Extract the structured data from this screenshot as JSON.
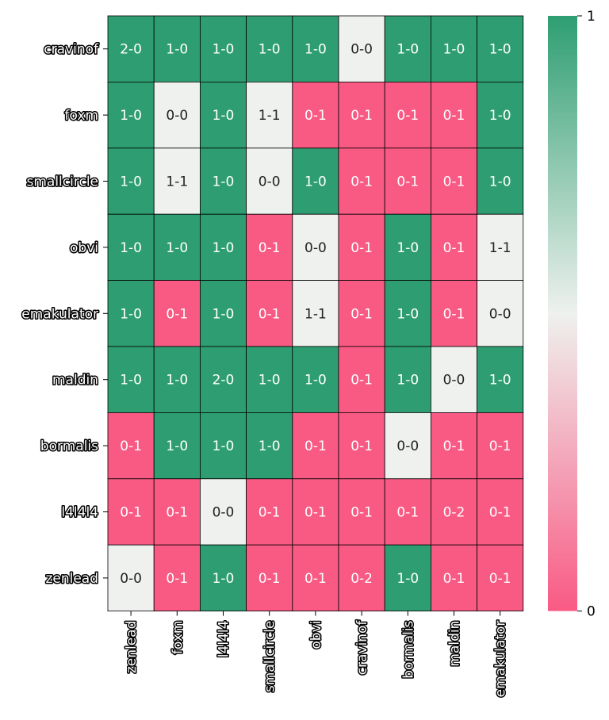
{
  "colors": {
    "high": "#2e9e72",
    "mid": "#eef1ee",
    "low": "#f95a84",
    "grid_line": "#000000",
    "text_on_dark": "#ffffff",
    "text_on_light": "#222222"
  },
  "chart_data": {
    "type": "heatmap",
    "row_labels": [
      "cravinof",
      "foxm",
      "smallcircle",
      "obvi",
      "emakulator",
      "maldin",
      "bormalis",
      "l4l4l4",
      "zenlead"
    ],
    "col_labels": [
      "zenlead",
      "foxm",
      "l4l4l4",
      "smallcircle",
      "obvi",
      "cravinof",
      "bormalis",
      "maldin",
      "emakulator"
    ],
    "cell_text": [
      [
        "2-0",
        "1-0",
        "1-0",
        "1-0",
        "1-0",
        "0-0",
        "1-0",
        "1-0",
        "1-0"
      ],
      [
        "1-0",
        "0-0",
        "1-0",
        "1-1",
        "0-1",
        "0-1",
        "0-1",
        "0-1",
        "1-0"
      ],
      [
        "1-0",
        "1-1",
        "1-0",
        "0-0",
        "1-0",
        "0-1",
        "0-1",
        "0-1",
        "1-0"
      ],
      [
        "1-0",
        "1-0",
        "1-0",
        "0-1",
        "0-0",
        "0-1",
        "1-0",
        "0-1",
        "1-1"
      ],
      [
        "1-0",
        "0-1",
        "1-0",
        "0-1",
        "1-1",
        "0-1",
        "1-0",
        "0-1",
        "0-0"
      ],
      [
        "1-0",
        "1-0",
        "2-0",
        "1-0",
        "1-0",
        "0-1",
        "1-0",
        "0-0",
        "1-0"
      ],
      [
        "0-1",
        "1-0",
        "1-0",
        "1-0",
        "0-1",
        "0-1",
        "0-0",
        "0-1",
        "0-1"
      ],
      [
        "0-1",
        "0-1",
        "0-0",
        "0-1",
        "0-1",
        "0-1",
        "0-1",
        "0-2",
        "0-1"
      ],
      [
        "0-0",
        "0-1",
        "1-0",
        "0-1",
        "0-1",
        "0-2",
        "1-0",
        "0-1",
        "0-1"
      ]
    ],
    "values": [
      [
        1,
        1,
        1,
        1,
        1,
        0.5,
        1,
        1,
        1
      ],
      [
        1,
        0.5,
        1,
        0.5,
        0,
        0,
        0,
        0,
        1
      ],
      [
        1,
        0.5,
        1,
        0.5,
        1,
        0,
        0,
        0,
        1
      ],
      [
        1,
        1,
        1,
        0,
        0.5,
        0,
        1,
        0,
        0.5
      ],
      [
        1,
        0,
        1,
        0,
        0.5,
        0,
        1,
        0,
        0.5
      ],
      [
        1,
        1,
        1,
        1,
        1,
        0,
        1,
        0.5,
        1
      ],
      [
        0,
        1,
        1,
        1,
        0,
        0,
        0.5,
        0,
        0
      ],
      [
        0,
        0,
        0.5,
        0,
        0,
        0,
        0,
        0,
        0
      ],
      [
        0.5,
        0,
        1,
        0,
        0,
        0,
        1,
        0,
        0
      ]
    ],
    "colorbar": {
      "min": 0,
      "max": 1,
      "ticks": [
        "0",
        "1"
      ]
    }
  }
}
